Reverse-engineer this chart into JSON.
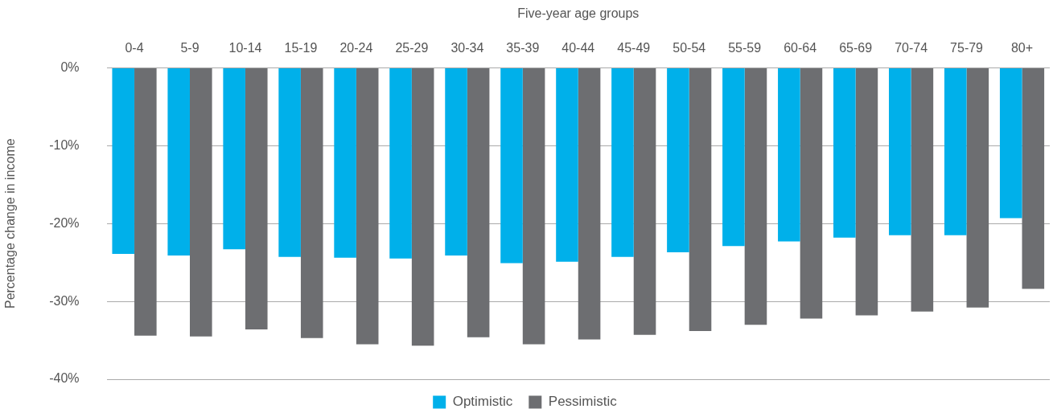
{
  "chart_data": {
    "type": "bar",
    "xlabel": "Five-year age groups",
    "ylabel": "Percentage change in income",
    "categories": [
      "0-4",
      "5-9",
      "10-14",
      "15-19",
      "20-24",
      "25-29",
      "30-34",
      "35-39",
      "40-44",
      "45-49",
      "50-54",
      "55-59",
      "60-64",
      "65-69",
      "70-74",
      "75-79",
      "80+"
    ],
    "series": [
      {
        "name": "Optimistic",
        "color": "#00b0ea",
        "values": [
          -23.9,
          -24.1,
          -23.3,
          -24.3,
          -24.4,
          -24.5,
          -24.1,
          -25.1,
          -24.9,
          -24.3,
          -23.7,
          -22.9,
          -22.3,
          -21.8,
          -21.5,
          -21.5,
          -19.3
        ]
      },
      {
        "name": "Pessimistic",
        "color": "#6d6e71",
        "values": [
          -34.4,
          -34.5,
          -33.6,
          -34.7,
          -35.5,
          -35.7,
          -34.6,
          -35.5,
          -34.9,
          -34.3,
          -33.8,
          -33.0,
          -32.2,
          -31.8,
          -31.3,
          -30.8,
          -28.4
        ]
      }
    ],
    "ylim": [
      -40,
      0
    ],
    "yticks": [
      {
        "value": 0,
        "label": "0%"
      },
      {
        "value": -10,
        "label": "-10%"
      },
      {
        "value": -20,
        "label": "-20%"
      },
      {
        "value": -30,
        "label": "-30%"
      },
      {
        "value": -40,
        "label": "-40%"
      }
    ],
    "grid": "y",
    "legend": "bottom"
  }
}
